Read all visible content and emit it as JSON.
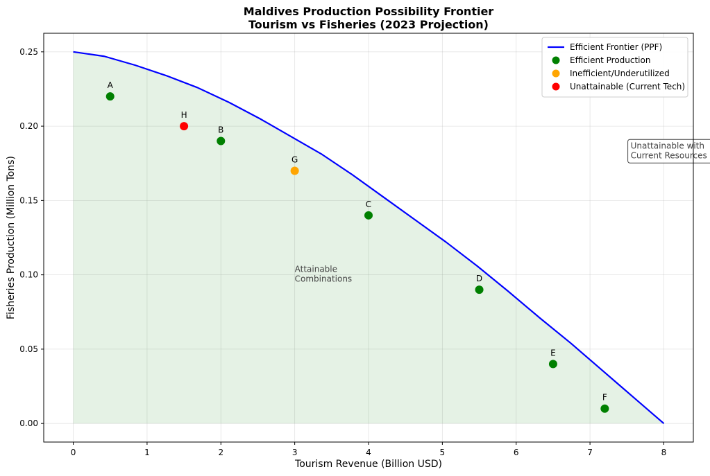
{
  "chart_data": {
    "type": "line",
    "title_lines": [
      "Maldives Production Possibility Frontier",
      "Tourism vs Fisheries (2023 Projection)"
    ],
    "xlabel": "Tourism Revenue (Billion USD)",
    "ylabel": "Fisheries Production (Million Tons)",
    "xlim": [
      -0.4,
      8.4
    ],
    "ylim": [
      -0.0125,
      0.2625
    ],
    "xticks": [
      0,
      1,
      2,
      3,
      4,
      5,
      6,
      7,
      8
    ],
    "xtick_labels": [
      "0",
      "1",
      "2",
      "3",
      "4",
      "5",
      "6",
      "7",
      "8"
    ],
    "yticks": [
      0.0,
      0.05,
      0.1,
      0.15,
      0.2,
      0.25
    ],
    "ytick_labels": [
      "0.00",
      "0.05",
      "0.10",
      "0.15",
      "0.20",
      "0.25"
    ],
    "grid": true,
    "frontier": {
      "name": "Efficient Frontier (PPF)",
      "color": "#0000ff",
      "fill_color": "#008000",
      "x": [
        0,
        0.42,
        0.84,
        1.26,
        1.68,
        2.11,
        2.53,
        2.95,
        3.37,
        3.79,
        4.21,
        4.63,
        5.05,
        5.47,
        5.89,
        6.32,
        6.74,
        7.16,
        7.58,
        8.0
      ],
      "y": [
        0.25,
        0.247,
        0.241,
        0.234,
        0.226,
        0.216,
        0.205,
        0.193,
        0.181,
        0.167,
        0.152,
        0.137,
        0.122,
        0.106,
        0.089,
        0.071,
        0.054,
        0.036,
        0.018,
        0.0
      ]
    },
    "points": [
      {
        "label": "A",
        "x": 0.5,
        "y": 0.22,
        "category": "efficient"
      },
      {
        "label": "B",
        "x": 2.0,
        "y": 0.19,
        "category": "efficient"
      },
      {
        "label": "C",
        "x": 4.0,
        "y": 0.14,
        "category": "efficient"
      },
      {
        "label": "D",
        "x": 5.5,
        "y": 0.09,
        "category": "efficient"
      },
      {
        "label": "E",
        "x": 6.5,
        "y": 0.04,
        "category": "efficient"
      },
      {
        "label": "F",
        "x": 7.2,
        "y": 0.01,
        "category": "efficient"
      },
      {
        "label": "G",
        "x": 3.0,
        "y": 0.17,
        "category": "inefficient"
      },
      {
        "label": "H",
        "x": 1.5,
        "y": 0.2,
        "category": "unattainable"
      }
    ],
    "category_colors": {
      "efficient": "#008000",
      "inefficient": "#ffa500",
      "unattainable": "#ff0000"
    },
    "legend": {
      "placement": "top-right",
      "entries": [
        {
          "label": "Efficient Frontier (PPF)",
          "kind": "line",
          "color": "#0000ff"
        },
        {
          "label": "Efficient Production",
          "kind": "marker",
          "color": "#008000"
        },
        {
          "label": "Inefficient/Underutilized",
          "kind": "marker",
          "color": "#ffa500"
        },
        {
          "label": "Unattainable (Current Tech)",
          "kind": "marker",
          "color": "#ff0000"
        }
      ]
    },
    "annotations": [
      {
        "lines": [
          "Attainable",
          "Combinations"
        ],
        "x": 3.0,
        "y": 0.102,
        "boxed": false
      },
      {
        "lines": [
          "Unattainable with",
          "Current Resources"
        ],
        "x": 7.55,
        "y": 0.185,
        "boxed": true
      }
    ]
  }
}
